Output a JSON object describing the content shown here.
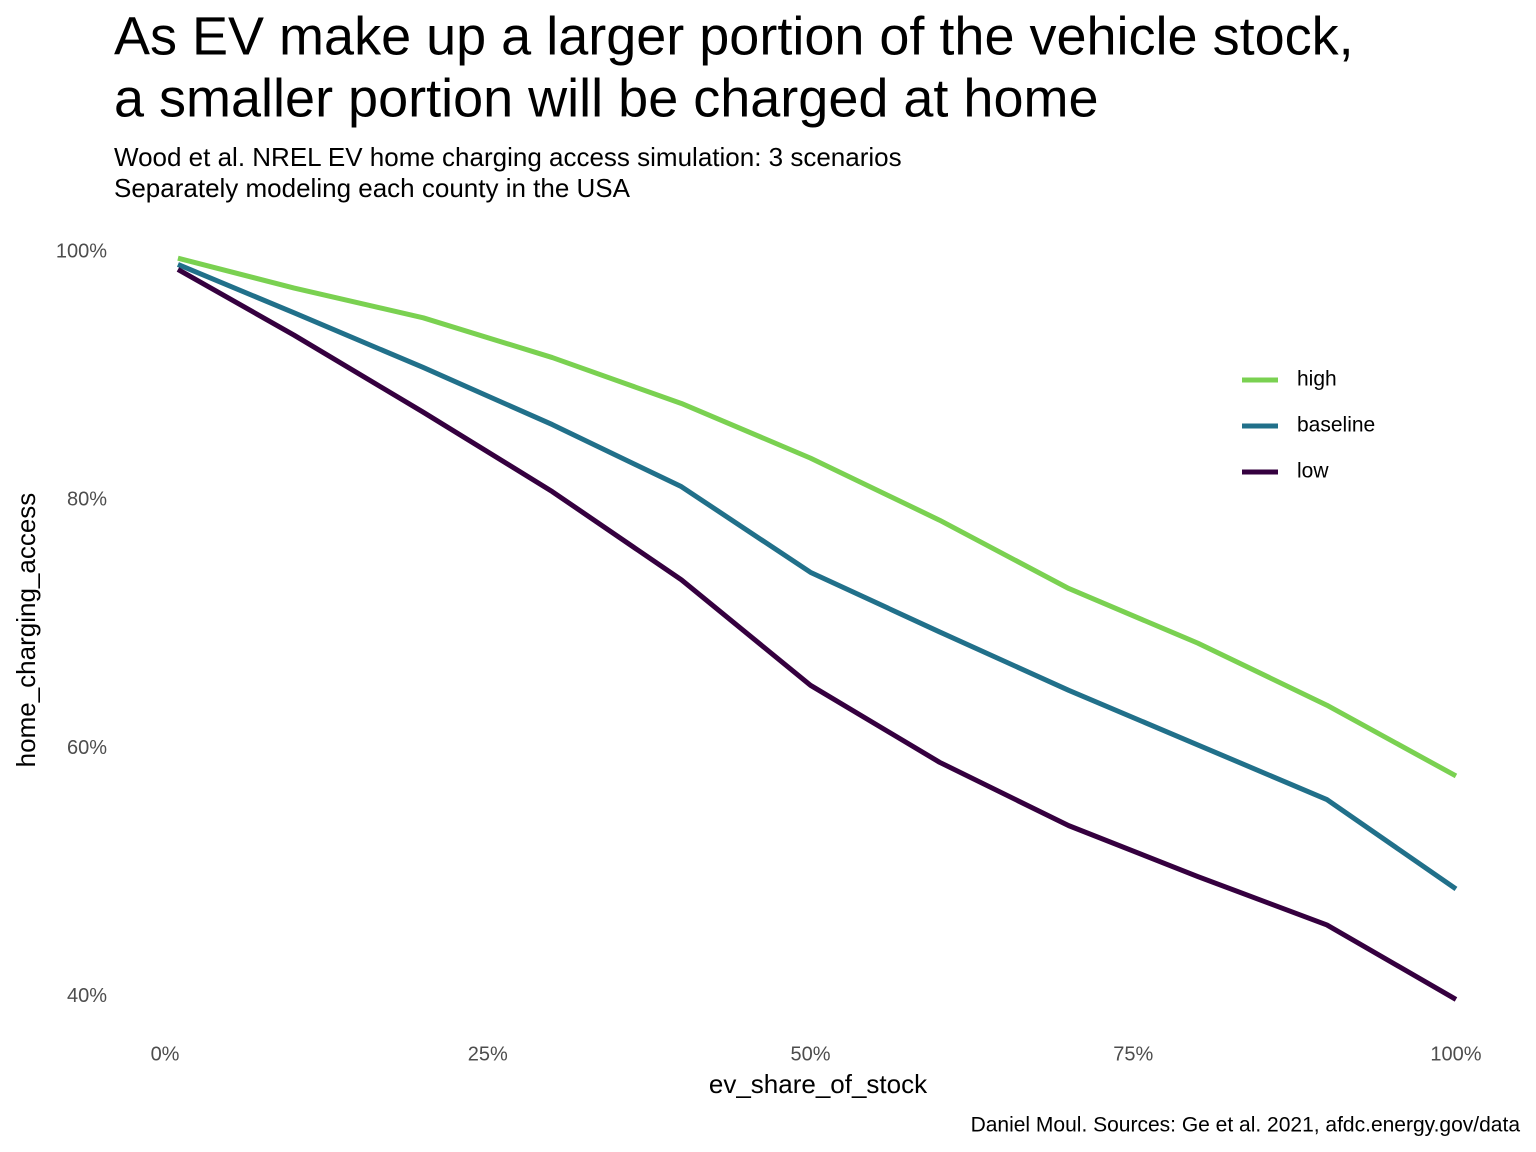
{
  "chart_data": {
    "type": "line",
    "title": [
      "As EV make up a larger portion of the vehicle stock,",
      "a smaller portion will be charged at home"
    ],
    "subtitle": [
      "Wood et al. NREL EV home charging access simulation: 3 scenarios",
      "Separately modeling each county in the USA"
    ],
    "caption": "Daniel Moul. Sources: Ge et al. 2021, afdc.energy.gov/data",
    "x_label": "ev_share_of_stock",
    "y_label": "home_charging_access",
    "x": [
      1,
      10,
      20,
      30,
      40,
      50,
      60,
      70,
      80,
      90,
      100
    ],
    "series": [
      {
        "name": "high",
        "color": "#7ad151",
        "values": [
          99.5,
          97.1,
          94.7,
          91.5,
          87.8,
          83.4,
          78.4,
          72.9,
          68.5,
          63.5,
          57.8
        ]
      },
      {
        "name": "baseline",
        "color": "#21708a",
        "values": [
          99.0,
          95.1,
          90.7,
          86.1,
          81.1,
          74.2,
          69.4,
          64.7,
          60.3,
          55.9,
          48.7
        ]
      },
      {
        "name": "low",
        "color": "#35003f",
        "values": [
          98.6,
          93.3,
          87.1,
          80.7,
          73.6,
          65.1,
          58.9,
          53.8,
          49.7,
          45.8,
          39.8
        ]
      }
    ],
    "xlim": [
      -3,
      103
    ],
    "ylim": [
      38,
      101
    ],
    "xticks": [
      {
        "value": 0,
        "label": "0%"
      },
      {
        "value": 25,
        "label": "25%"
      },
      {
        "value": 50,
        "label": "50%"
      },
      {
        "value": 75,
        "label": "75%"
      },
      {
        "value": 100,
        "label": "100%"
      }
    ],
    "yticks": [
      {
        "value": 40,
        "label": "40%"
      },
      {
        "value": 60,
        "label": "60%"
      },
      {
        "value": 80,
        "label": "80%"
      },
      {
        "value": 100,
        "label": "100%"
      }
    ],
    "grid": false,
    "legend": "right"
  }
}
